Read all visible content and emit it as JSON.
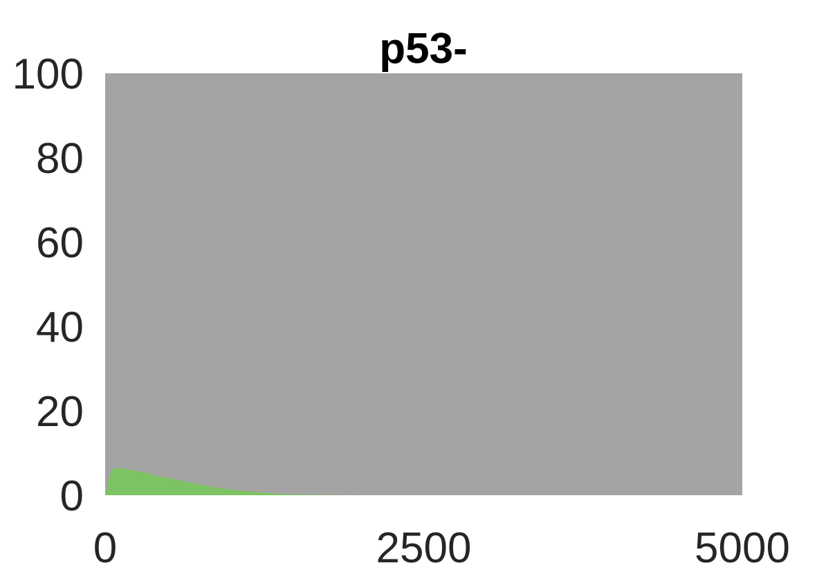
{
  "chart_data": {
    "type": "area",
    "title": "p53-",
    "xlabel": "",
    "ylabel": "",
    "xlim": [
      0,
      5000
    ],
    "ylim": [
      0,
      100
    ],
    "x_ticks": [
      "0",
      "2500",
      "5000"
    ],
    "y_ticks": [
      "0",
      "20",
      "40",
      "60",
      "80",
      "100"
    ],
    "grid": false,
    "stacked": true,
    "series": [
      {
        "color": "#7dc263",
        "x": [
          0,
          50,
          100,
          200,
          300,
          400,
          500,
          600,
          700,
          800,
          900,
          1000,
          1100,
          1200,
          1300,
          1400,
          1500,
          1600,
          1800,
          2000,
          5000
        ],
        "values": [
          0,
          6.2,
          6.5,
          6.0,
          5.5,
          4.6,
          4.1,
          3.4,
          2.8,
          2.2,
          1.7,
          1.3,
          1.0,
          0.7,
          0.5,
          0.3,
          0.2,
          0.1,
          0.05,
          0,
          0
        ]
      },
      {
        "color": "#a4a4a4",
        "fill_to": 100
      }
    ]
  }
}
